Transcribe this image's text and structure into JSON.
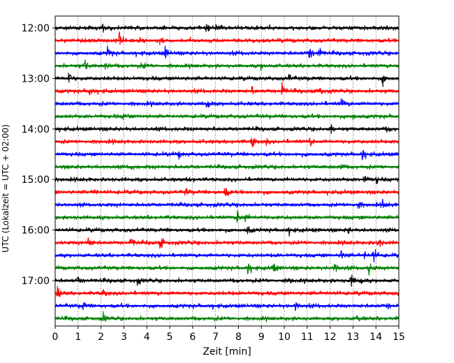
{
  "chart_data": {
    "type": "line",
    "title": "",
    "xlabel": "Zeit  [min]",
    "ylabel": "UTC (Lokalzeit = UTC + 02:00)",
    "xlim": [
      0,
      15
    ],
    "x_ticks": [
      "0",
      "1",
      "2",
      "3",
      "4",
      "5",
      "6",
      "7",
      "8",
      "9",
      "10",
      "11",
      "12",
      "13",
      "14",
      "15"
    ],
    "y_tick_labels": [
      {
        "label": "12:00",
        "trace": 0
      },
      {
        "label": "13:00",
        "trace": 4
      },
      {
        "label": "14:00",
        "trace": 8
      },
      {
        "label": "15:00",
        "trace": 12
      },
      {
        "label": "16:00",
        "trace": 16
      },
      {
        "label": "17:00",
        "trace": 20
      }
    ],
    "grid": "vertical dotted",
    "colors": [
      "#000000",
      "#ff0000",
      "#0000ff",
      "#008000"
    ],
    "traces": [
      {
        "start": "12:00",
        "color": "#000000",
        "events": [
          [
            7.05,
            1.0
          ],
          [
            2.1,
            0.4
          ],
          [
            6.6,
            0.35
          ]
        ]
      },
      {
        "start": "12:15",
        "color": "#ff0000",
        "events": [
          [
            2.8,
            1.0
          ],
          [
            4.5,
            0.8
          ],
          [
            3.7,
            0.4
          ]
        ]
      },
      {
        "start": "12:30",
        "color": "#0000ff",
        "events": [
          [
            2.3,
            0.9
          ],
          [
            4.8,
            0.8
          ],
          [
            11.1,
            1.0
          ],
          [
            11.5,
            0.9
          ]
        ]
      },
      {
        "start": "12:45",
        "color": "#008000",
        "events": [
          [
            1.3,
            0.8
          ],
          [
            2.2,
            0.6
          ],
          [
            3.8,
            0.4
          ],
          [
            9.0,
            0.4
          ]
        ]
      },
      {
        "start": "13:00",
        "color": "#000000",
        "events": [
          [
            0.6,
            1.0
          ],
          [
            14.3,
            0.8
          ],
          [
            10.2,
            0.5
          ]
        ]
      },
      {
        "start": "13:15",
        "color": "#ff0000",
        "events": [
          [
            1.5,
            0.7
          ],
          [
            9.9,
            1.0
          ],
          [
            11.5,
            0.9
          ],
          [
            8.6,
            0.4
          ]
        ]
      },
      {
        "start": "13:30",
        "color": "#0000ff",
        "events": [
          [
            6.6,
            1.0
          ],
          [
            12.5,
            0.8
          ]
        ]
      },
      {
        "start": "13:45",
        "color": "#008000",
        "events": [
          [
            3.0,
            0.4
          ],
          [
            13.0,
            0.4
          ]
        ]
      },
      {
        "start": "14:00",
        "color": "#000000",
        "events": [
          [
            12.0,
            0.8
          ],
          [
            14.5,
            0.4
          ]
        ]
      },
      {
        "start": "14:15",
        "color": "#ff0000",
        "events": [
          [
            8.6,
            1.0
          ],
          [
            11.1,
            0.6
          ],
          [
            9.2,
            0.4
          ]
        ]
      },
      {
        "start": "14:30",
        "color": "#0000ff",
        "events": [
          [
            13.4,
            0.9
          ],
          [
            5.4,
            0.4
          ]
        ]
      },
      {
        "start": "14:45",
        "color": "#008000",
        "events": [
          [
            3.3,
            0.4
          ],
          [
            12.5,
            0.4
          ]
        ]
      },
      {
        "start": "15:00",
        "color": "#000000",
        "events": [
          [
            13.5,
            0.7
          ],
          [
            14.0,
            0.5
          ],
          [
            5.9,
            0.35
          ]
        ]
      },
      {
        "start": "15:15",
        "color": "#ff0000",
        "events": [
          [
            7.4,
            1.0
          ],
          [
            1.7,
            0.6
          ],
          [
            5.7,
            0.45
          ]
        ]
      },
      {
        "start": "15:30",
        "color": "#0000ff",
        "events": [
          [
            13.2,
            0.7
          ],
          [
            14.3,
            0.4
          ]
        ]
      },
      {
        "start": "15:45",
        "color": "#008000",
        "events": [
          [
            7.95,
            1.0
          ],
          [
            8.3,
            0.5
          ]
        ]
      },
      {
        "start": "16:00",
        "color": "#000000",
        "events": [
          [
            8.4,
            0.6
          ],
          [
            10.2,
            0.4
          ],
          [
            12.8,
            0.45
          ]
        ]
      },
      {
        "start": "16:15",
        "color": "#ff0000",
        "events": [
          [
            1.45,
            0.9
          ],
          [
            3.3,
            0.8
          ],
          [
            4.6,
            0.9
          ],
          [
            14.1,
            0.8
          ]
        ]
      },
      {
        "start": "16:30",
        "color": "#0000ff",
        "events": [
          [
            12.5,
            0.8
          ],
          [
            13.9,
            1.0
          ],
          [
            13.5,
            0.5
          ]
        ]
      },
      {
        "start": "16:45",
        "color": "#008000",
        "events": [
          [
            8.4,
            0.9
          ],
          [
            9.5,
            0.7
          ],
          [
            12.2,
            1.0
          ],
          [
            13.7,
            1.0
          ]
        ]
      },
      {
        "start": "17:00",
        "color": "#000000",
        "events": [
          [
            12.9,
            1.0
          ],
          [
            13.3,
            0.6
          ],
          [
            1.0,
            0.5
          ],
          [
            3.6,
            0.4
          ],
          [
            10.2,
            0.5
          ]
        ]
      },
      {
        "start": "17:15",
        "color": "#ff0000",
        "events": [
          [
            0.1,
            0.8
          ],
          [
            2.1,
            0.6
          ]
        ]
      },
      {
        "start": "17:30",
        "color": "#0000ff",
        "events": [
          [
            1.2,
            0.6
          ],
          [
            10.5,
            0.8
          ],
          [
            14.5,
            0.4
          ]
        ]
      },
      {
        "start": "17:45",
        "color": "#008000",
        "events": [
          [
            2.1,
            0.6
          ],
          [
            13.2,
            0.5
          ]
        ]
      }
    ]
  }
}
